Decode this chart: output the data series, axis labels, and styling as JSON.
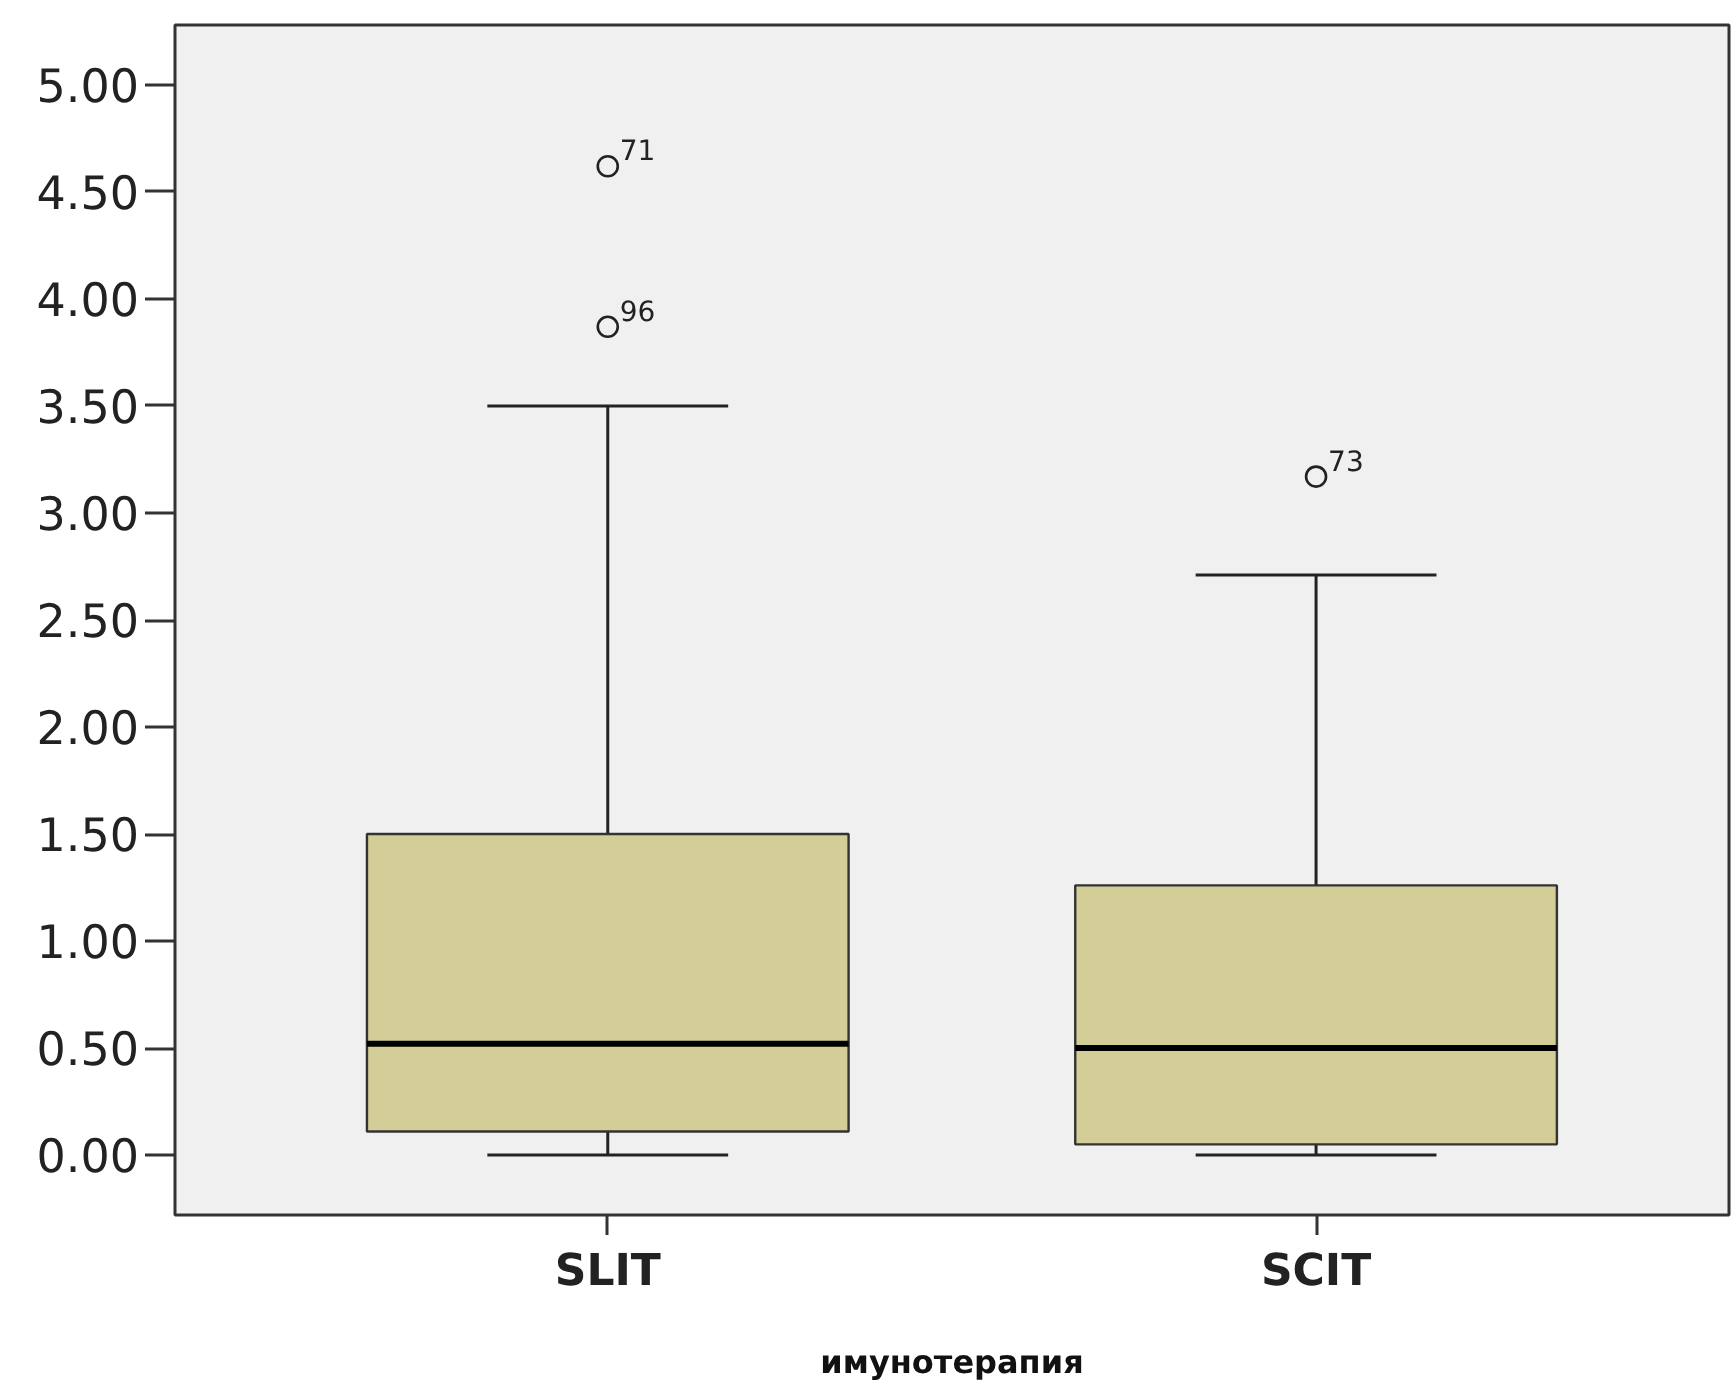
{
  "chart_data": {
    "type": "box",
    "xlabel": "имунотерапия",
    "categories": [
      "SLIT",
      "SCIT"
    ],
    "color": "#d3ce98",
    "boxes": [
      {
        "low": 0,
        "q1": 0.11,
        "median": 0.52,
        "q3": 1.5,
        "high": 3.5,
        "outliers": [
          4.62,
          3.87
        ]
      },
      {
        "low": 0,
        "q1": 0.05,
        "median": 0.5,
        "q3": 1.26,
        "high": 2.71,
        "outliers": [
          3.17
        ]
      }
    ],
    "ylim": [
      -0.28,
      5.28
    ],
    "yticks": [
      {
        "value": 0,
        "label": "0.00"
      },
      {
        "value": 0.5,
        "label": "0.50"
      },
      {
        "value": 1,
        "label": "1.00"
      },
      {
        "value": 1.5,
        "label": "1.50"
      },
      {
        "value": 2,
        "label": "2.00"
      },
      {
        "value": 2.5,
        "label": "2.50"
      },
      {
        "value": 3,
        "label": "3.00"
      },
      {
        "value": 3.5,
        "label": "3.50"
      },
      {
        "value": 4,
        "label": "4.00"
      },
      {
        "value": 4.5,
        "label": "4.50"
      },
      {
        "value": 5,
        "label": "5.00"
      }
    ],
    "annotations": [
      "71",
      "96",
      "73"
    ]
  }
}
